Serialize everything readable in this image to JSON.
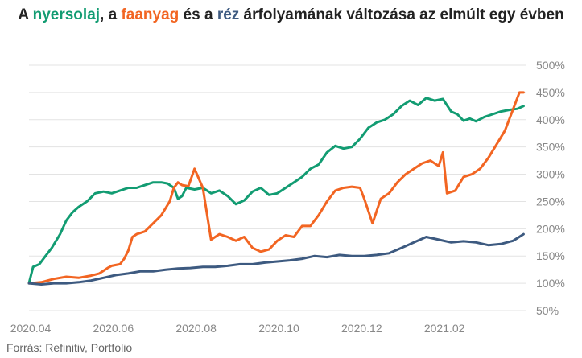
{
  "title": {
    "p1": "A ",
    "s1": "nyersolaj",
    "p2": ", a ",
    "s2": "faanyag",
    "p3": " és a ",
    "s3": "réz",
    "p4": " árfolyamának változása az elmúlt egy évben"
  },
  "source": "Forrás: Refinitiv, Portfolio",
  "chart_data": {
    "type": "line",
    "yticks": [
      "500%",
      "450%",
      "400%",
      "350%",
      "300%",
      "250%",
      "200%",
      "150%",
      "100%",
      "50%"
    ],
    "xticks": [
      "2020.04",
      "2020.06",
      "2020.08",
      "2020.10",
      "2020.12",
      "2021.02"
    ],
    "ylim": [
      50,
      500
    ],
    "xlim": [
      0,
      12
    ],
    "grid": true,
    "series": [
      {
        "name": "nyersolaj",
        "color": "#129c72",
        "x": [
          0,
          0.1,
          0.25,
          0.4,
          0.55,
          0.75,
          0.9,
          1.05,
          1.2,
          1.4,
          1.6,
          1.8,
          2.0,
          2.2,
          2.4,
          2.6,
          2.8,
          3.0,
          3.2,
          3.35,
          3.5,
          3.6,
          3.7,
          3.8,
          4.0,
          4.2,
          4.4,
          4.6,
          4.8,
          5.0,
          5.2,
          5.4,
          5.6,
          5.8,
          6.0,
          6.2,
          6.4,
          6.6,
          6.8,
          7.0,
          7.2,
          7.4,
          7.6,
          7.8,
          8.0,
          8.2,
          8.4,
          8.6,
          8.8,
          9.0,
          9.2,
          9.4,
          9.6,
          9.8,
          10.0,
          10.2,
          10.35,
          10.5,
          10.65,
          10.8,
          11.0,
          11.2,
          11.4,
          11.6,
          11.8,
          11.95
        ],
        "values": [
          100,
          130,
          135,
          150,
          165,
          190,
          215,
          230,
          240,
          250,
          265,
          268,
          265,
          270,
          275,
          275,
          280,
          285,
          285,
          283,
          275,
          255,
          260,
          275,
          272,
          275,
          265,
          270,
          260,
          245,
          252,
          268,
          275,
          262,
          265,
          275,
          285,
          295,
          310,
          318,
          340,
          352,
          347,
          350,
          365,
          385,
          395,
          400,
          410,
          425,
          435,
          427,
          440,
          435,
          438,
          415,
          410,
          398,
          402,
          397,
          405,
          410,
          415,
          418,
          420,
          425
        ]
      },
      {
        "name": "faanyag",
        "color": "#f26522",
        "x": [
          0,
          0.3,
          0.6,
          0.9,
          1.2,
          1.5,
          1.7,
          1.9,
          2.0,
          2.2,
          2.3,
          2.4,
          2.5,
          2.6,
          2.8,
          3.0,
          3.2,
          3.4,
          3.5,
          3.6,
          3.7,
          3.85,
          4.0,
          4.2,
          4.4,
          4.6,
          4.8,
          5.0,
          5.2,
          5.4,
          5.6,
          5.8,
          6.0,
          6.2,
          6.4,
          6.6,
          6.8,
          7.0,
          7.2,
          7.4,
          7.6,
          7.8,
          8.0,
          8.1,
          8.3,
          8.5,
          8.7,
          8.9,
          9.1,
          9.3,
          9.5,
          9.7,
          9.9,
          10.0,
          10.1,
          10.3,
          10.5,
          10.7,
          10.9,
          11.1,
          11.3,
          11.5,
          11.7,
          11.85,
          11.95
        ],
        "values": [
          100,
          102,
          108,
          112,
          110,
          114,
          118,
          128,
          132,
          135,
          145,
          160,
          185,
          190,
          195,
          210,
          225,
          250,
          275,
          285,
          280,
          278,
          310,
          275,
          180,
          190,
          185,
          178,
          185,
          165,
          158,
          162,
          178,
          188,
          185,
          205,
          205,
          225,
          250,
          270,
          275,
          277,
          275,
          255,
          210,
          255,
          265,
          285,
          300,
          310,
          320,
          325,
          315,
          340,
          265,
          270,
          295,
          300,
          310,
          330,
          355,
          380,
          420,
          450,
          450
        ]
      },
      {
        "name": "réz",
        "color": "#3d5a80",
        "x": [
          0,
          0.3,
          0.6,
          0.9,
          1.2,
          1.5,
          1.8,
          2.1,
          2.4,
          2.7,
          3.0,
          3.3,
          3.6,
          3.9,
          4.2,
          4.5,
          4.8,
          5.1,
          5.4,
          5.7,
          6.0,
          6.3,
          6.6,
          6.9,
          7.2,
          7.5,
          7.8,
          8.1,
          8.4,
          8.7,
          9.0,
          9.3,
          9.6,
          9.9,
          10.2,
          10.5,
          10.8,
          11.1,
          11.4,
          11.7,
          11.95
        ],
        "values": [
          100,
          98,
          100,
          100,
          102,
          105,
          110,
          115,
          118,
          122,
          122,
          125,
          127,
          128,
          130,
          130,
          132,
          135,
          135,
          138,
          140,
          142,
          145,
          150,
          148,
          152,
          150,
          150,
          152,
          155,
          165,
          175,
          185,
          180,
          175,
          177,
          175,
          170,
          172,
          178,
          190
        ]
      }
    ]
  }
}
